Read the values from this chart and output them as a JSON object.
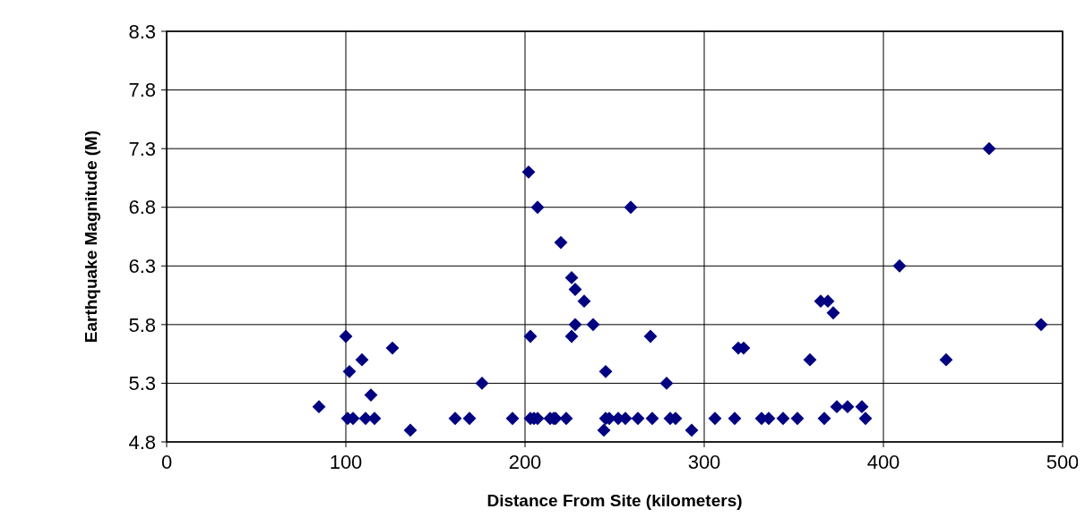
{
  "chart_data": {
    "type": "scatter",
    "xlabel": "Distance From Site (kilometers)",
    "ylabel": "Earthquake Magnitude (M)",
    "xlim": [
      0,
      500
    ],
    "xticks": [
      0,
      100,
      200,
      300,
      400,
      500
    ],
    "ylim": [
      4.8,
      8.3
    ],
    "yticks": [
      4.8,
      5.3,
      5.8,
      6.3,
      6.8,
      7.3,
      7.8,
      8.3
    ],
    "grid": true,
    "marker": "diamond",
    "series": [
      {
        "color": "#000080",
        "x": [
          85,
          100,
          101,
          102,
          104,
          109,
          111,
          114,
          116,
          126,
          136,
          161,
          169,
          176,
          193,
          202,
          203,
          203,
          205,
          207,
          207,
          214,
          216,
          217,
          220,
          223,
          226,
          226,
          228,
          228,
          233,
          238,
          244,
          245,
          245,
          247,
          252,
          256,
          259,
          263,
          270,
          271,
          279,
          281,
          284,
          293,
          306,
          317,
          319,
          322,
          332,
          336,
          344,
          352,
          359,
          365,
          367,
          369,
          372,
          374,
          380,
          388,
          390,
          409,
          435,
          459,
          488
        ],
        "values": [
          5.1,
          5.7,
          5.0,
          5.4,
          5.0,
          5.5,
          5.0,
          5.2,
          5.0,
          5.6,
          4.9,
          5.0,
          5.0,
          5.3,
          5.0,
          7.1,
          5.7,
          5.0,
          5.0,
          6.8,
          5.0,
          5.0,
          5.0,
          5.0,
          6.5,
          5.0,
          6.2,
          5.7,
          6.1,
          5.8,
          6.0,
          5.8,
          4.9,
          5.4,
          5.0,
          5.0,
          5.0,
          5.0,
          6.8,
          5.0,
          5.7,
          5.0,
          5.3,
          5.0,
          5.0,
          4.9,
          5.0,
          5.0,
          5.6,
          5.6,
          5.0,
          5.0,
          5.0,
          5.0,
          5.5,
          6.0,
          5.0,
          6.0,
          5.9,
          5.1,
          5.1,
          5.1,
          5.0,
          6.3,
          5.5,
          7.3,
          5.8
        ]
      }
    ]
  }
}
